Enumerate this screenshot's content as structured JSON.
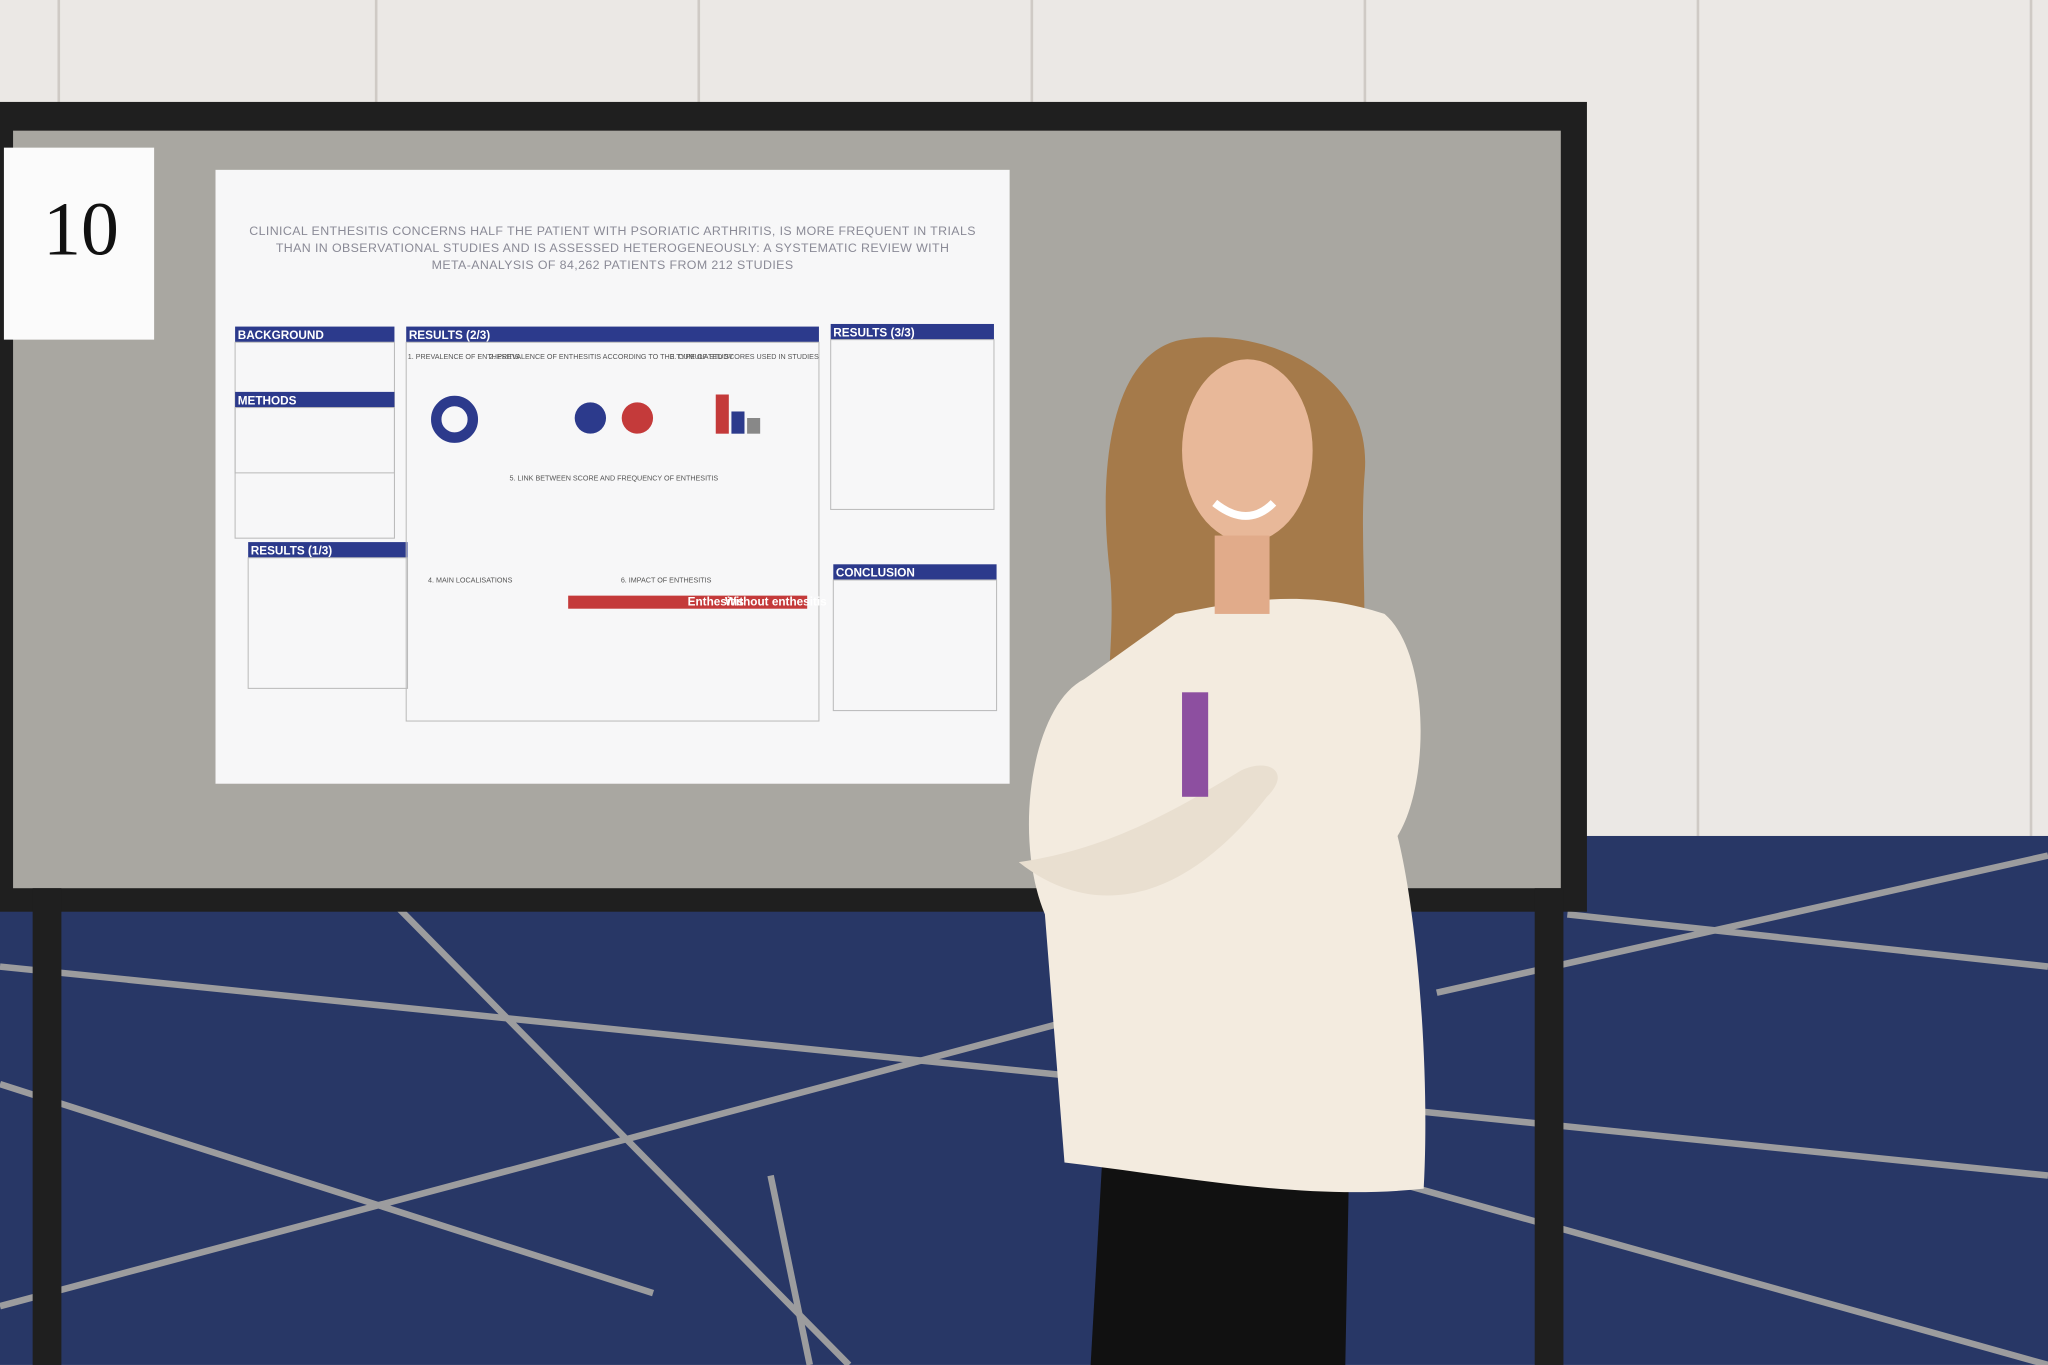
{
  "board_number": "10",
  "poster": {
    "title_lines": [
      "CLINICAL ENTHESITIS CONCERNS HALF THE PATIENT WITH PSORIATIC ARTHRITIS, IS MORE FREQUENT IN TRIALS",
      "THAN IN OBSERVATIONAL STUDIES AND IS ASSESSED HETEROGENEOUSLY: A SYSTEMATIC REVIEW WITH",
      "META-ANALYSIS OF 84,262 PATIENTS FROM 212 STUDIES"
    ],
    "sections": [
      "BACKGROUND",
      "METHODS",
      "RESULTS (1/3)",
      "RESULTS (2/3)",
      "RESULTS (3/3)",
      "CONCLUSION"
    ],
    "subheadings": [
      "1. PREVALENCE OF ENTHESITIS",
      "2. PREVALENCE OF ENTHESITIS ACCORDING TO THE TYPE OF STUDY",
      "3. CUMULATED SCORES USED IN STUDIES",
      "5. LINK BETWEEN SCORE AND FREQUENCY OF ENTHESITIS",
      "4. MAIN LOCALISATIONS",
      "6. IMPACT OF ENTHESITIS"
    ],
    "table_headers": [
      "Enthesitis",
      "Without enthesitis"
    ]
  }
}
